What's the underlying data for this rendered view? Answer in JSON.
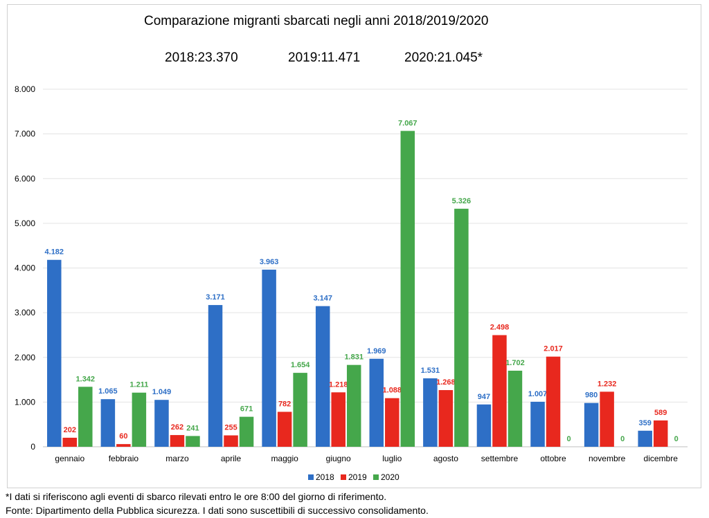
{
  "chart_data": {
    "type": "bar",
    "title": "Comparazione migranti sbarcati negli anni 2018/2019/2020",
    "totals": {
      "t2018": "2018:23.370",
      "t2019": "2019:11.471",
      "t2020": "2020:21.045*"
    },
    "categories": [
      "gennaio",
      "febbraio",
      "marzo",
      "aprile",
      "maggio",
      "giugno",
      "luglio",
      "agosto",
      "settembre",
      "ottobre",
      "novembre",
      "dicembre"
    ],
    "series": [
      {
        "name": "2018",
        "color": "#2e6fc6",
        "values": [
          4182,
          1065,
          1049,
          3171,
          3963,
          3147,
          1969,
          1531,
          947,
          1007,
          980,
          359
        ],
        "labels": [
          "4.182",
          "1.065",
          "1.049",
          "3.171",
          "3.963",
          "3.147",
          "1.969",
          "1.531",
          "947",
          "1.007",
          "980",
          "359"
        ]
      },
      {
        "name": "2019",
        "color": "#e8281e",
        "values": [
          202,
          60,
          262,
          255,
          782,
          1218,
          1088,
          1268,
          2498,
          2017,
          1232,
          589
        ],
        "labels": [
          "202",
          "60",
          "262",
          "255",
          "782",
          "1.218",
          "1.088",
          "1.268",
          "2.498",
          "2.017",
          "1.232",
          "589"
        ]
      },
      {
        "name": "2020",
        "color": "#45a74b",
        "values": [
          1342,
          1211,
          241,
          671,
          1654,
          1831,
          7067,
          5326,
          1702,
          0,
          0,
          0
        ],
        "labels": [
          "1.342",
          "1.211",
          "241",
          "671",
          "1.654",
          "1.831",
          "7.067",
          "5.326",
          "1.702",
          "0",
          "0",
          "0"
        ]
      }
    ],
    "ylim": [
      0,
      8000
    ],
    "yticks": [
      0,
      1000,
      2000,
      3000,
      4000,
      5000,
      6000,
      7000,
      8000
    ],
    "ytick_labels": [
      "0",
      "1.000",
      "2.000",
      "3.000",
      "4.000",
      "5.000",
      "6.000",
      "7.000",
      "8.000"
    ],
    "grid": true,
    "legend_position": "bottom"
  },
  "footnotes": {
    "note": "*I dati si riferiscono agli eventi di sbarco rilevati entro le ore 8:00 del giorno di riferimento.",
    "source": "Fonte: Dipartimento della Pubblica sicurezza. I dati sono suscettibili di successivo consolidamento."
  }
}
